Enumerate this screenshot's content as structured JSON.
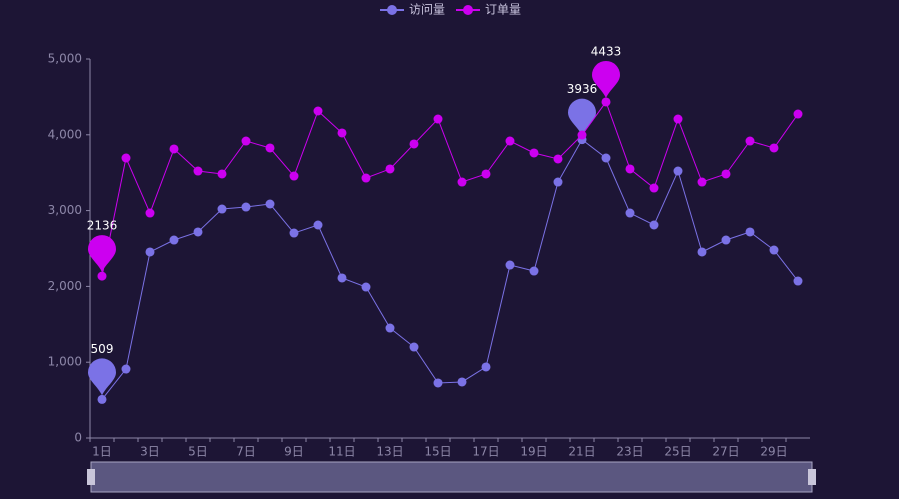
{
  "chart_data": {
    "type": "line",
    "categories": [
      "1日",
      null,
      "3日",
      null,
      "5日",
      null,
      "7日",
      null,
      "9日",
      null,
      "11日",
      null,
      "13日",
      null,
      "15日",
      null,
      "17日",
      null,
      "19日",
      null,
      "21日",
      null,
      "23日",
      null,
      "25日",
      null,
      "27日",
      null,
      "29日",
      null
    ],
    "series": [
      {
        "name": "访问量",
        "color": "#7b72e6",
        "values": [
          509,
          910,
          2454,
          2612,
          2718,
          3021,
          3047,
          3087,
          2704,
          2810,
          2111,
          1992,
          1451,
          1200,
          726,
          739,
          937,
          2282,
          2203,
          3377,
          3936,
          3694,
          2968,
          2810,
          3522,
          2454,
          2612,
          2718,
          2480,
          2071
        ]
      },
      {
        "name": "订单量",
        "color": "#cc00f0",
        "values": [
          2136,
          3694,
          2968,
          3813,
          3522,
          3483,
          3918,
          3826,
          3456,
          4314,
          4024,
          3430,
          3549,
          3879,
          4208,
          3377,
          3483,
          3918,
          3760,
          3681,
          3997,
          4433,
          3549,
          3298,
          4208,
          3377,
          3483,
          3918,
          3826,
          4274
        ]
      }
    ],
    "ylim": [
      0,
      5000
    ],
    "yticks": [
      0,
      {
        "value": 1000,
        "label": "1,000"
      },
      {
        "value": 2000,
        "label": "2,000"
      },
      {
        "value": 3000,
        "label": "3,000"
      },
      {
        "value": 4000,
        "label": "4,000"
      },
      {
        "value": 5000,
        "label": "5,000"
      }
    ],
    "legend": "top"
  }
}
